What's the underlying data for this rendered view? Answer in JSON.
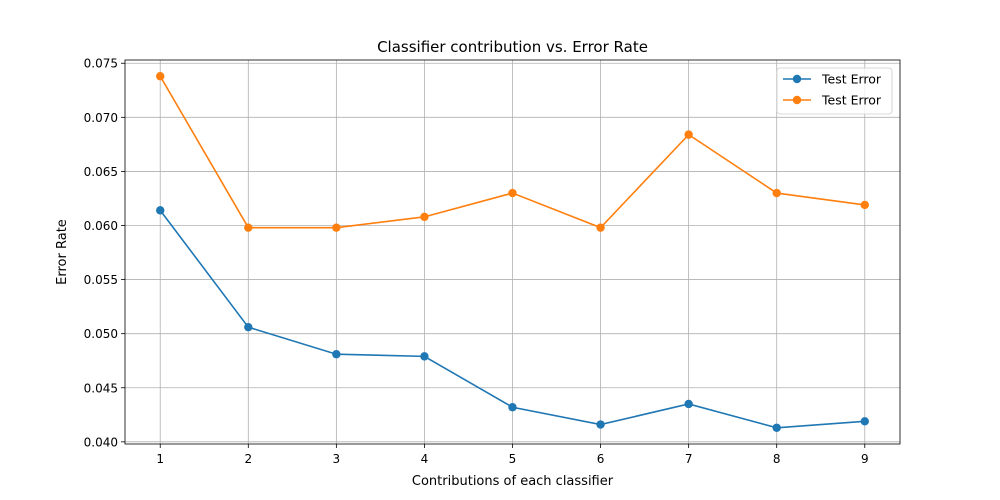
{
  "chart_data": {
    "type": "line",
    "title": "Classifier contribution vs. Error Rate",
    "xlabel": "Contributions of each classifier",
    "ylabel": "Error Rate",
    "x": [
      1,
      2,
      3,
      4,
      5,
      6,
      7,
      8,
      9
    ],
    "xlim": [
      0.6,
      9.4
    ],
    "ylim": [
      0.0398,
      0.0753
    ],
    "x_ticks": [
      "1",
      "2",
      "3",
      "4",
      "5",
      "6",
      "7",
      "8",
      "9"
    ],
    "y_ticks": [
      0.04,
      0.045,
      0.05,
      0.055,
      0.06,
      0.065,
      0.07,
      0.075
    ],
    "y_tick_labels": [
      "0.040",
      "0.045",
      "0.050",
      "0.055",
      "0.060",
      "0.065",
      "0.070",
      "0.075"
    ],
    "grid": true,
    "legend_position": "top-right",
    "series": [
      {
        "name": "Test Error",
        "color": "#1f77b4",
        "marker": "circle",
        "values": [
          0.0614,
          0.0506,
          0.0481,
          0.0479,
          0.0432,
          0.0416,
          0.0435,
          0.0413,
          0.0419
        ]
      },
      {
        "name": "Test Error",
        "color": "#ff7f0e",
        "marker": "circle",
        "values": [
          0.0738,
          0.0598,
          0.0598,
          0.0608,
          0.063,
          0.0598,
          0.0684,
          0.063,
          0.0619
        ]
      }
    ]
  }
}
